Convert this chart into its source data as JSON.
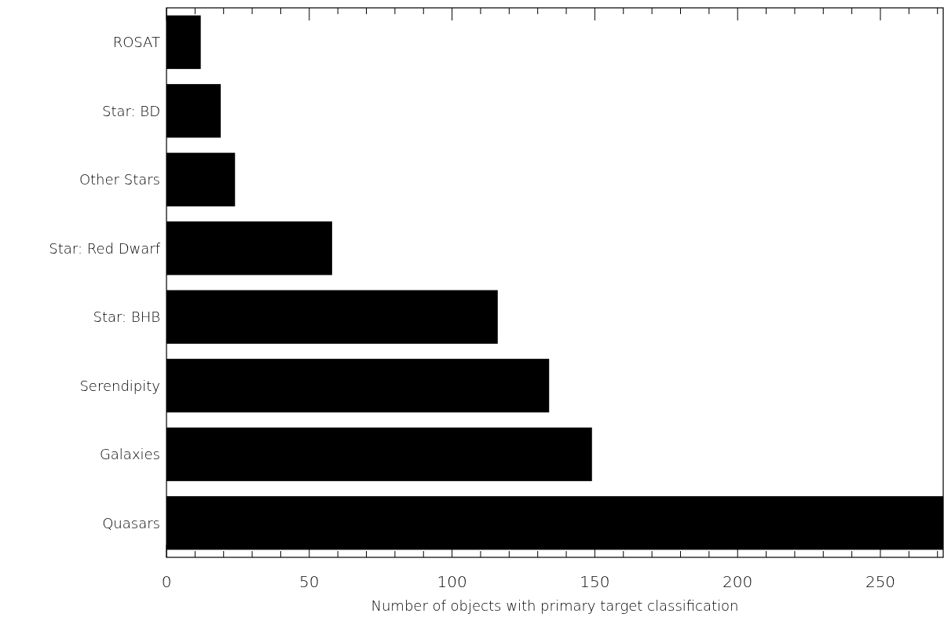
{
  "chart_data": {
    "type": "bar",
    "orientation": "horizontal",
    "xlabel": "Number of objects with primary target classification",
    "categories": [
      "ROSAT",
      "Star: BD",
      "Other Stars",
      "Star: Red Dwarf",
      "Star: BHB",
      "Serendipity",
      "Galaxies",
      "Quasars"
    ],
    "values": [
      12,
      19,
      24,
      58,
      116,
      134,
      149,
      272
    ],
    "color": "#000000",
    "xlim": [
      0,
      272
    ],
    "xticks": [
      0,
      {
        "value": 10,
        "label": null
      },
      {
        "value": 20,
        "label": null
      },
      {
        "value": 30,
        "label": null
      },
      {
        "value": 40,
        "label": null
      },
      50,
      {
        "value": 60,
        "label": null
      },
      {
        "value": 70,
        "label": null
      },
      {
        "value": 80,
        "label": null
      },
      {
        "value": 90,
        "label": null
      },
      100,
      {
        "value": 110,
        "label": null
      },
      {
        "value": 120,
        "label": null
      },
      {
        "value": 130,
        "label": null
      },
      {
        "value": 140,
        "label": null
      },
      150,
      {
        "value": 160,
        "label": null
      },
      {
        "value": 170,
        "label": null
      },
      {
        "value": 180,
        "label": null
      },
      {
        "value": 190,
        "label": null
      },
      200,
      {
        "value": 210,
        "label": null
      },
      {
        "value": 220,
        "label": null
      },
      {
        "value": 230,
        "label": null
      },
      {
        "value": 240,
        "label": null
      },
      250,
      {
        "value": 260,
        "label": null
      },
      {
        "value": 270,
        "label": null
      }
    ]
  }
}
